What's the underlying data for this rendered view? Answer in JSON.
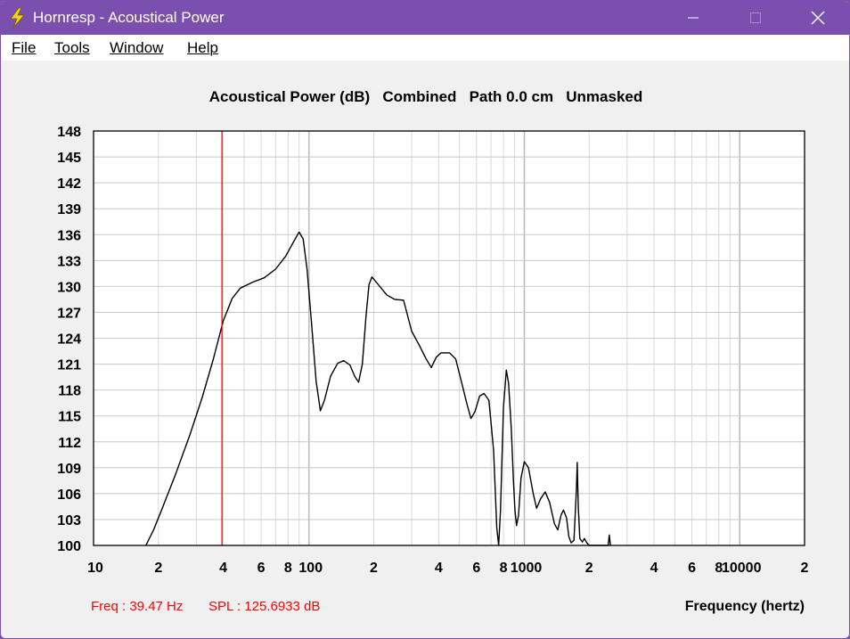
{
  "window": {
    "title": "Hornresp - Acoustical Power",
    "accent_color": "#7b4fae",
    "icons": {
      "app": "lightning-bolt-icon",
      "minimize": "minimize-icon",
      "maximize": "maximize-icon",
      "close": "close-icon"
    }
  },
  "menu": {
    "items": [
      {
        "label": "File"
      },
      {
        "label": "Tools"
      },
      {
        "label": "Window"
      },
      {
        "label": "Help"
      }
    ]
  },
  "readout": {
    "freq": "Freq : 39.47 Hz",
    "spl": "SPL : 125.6933 dB",
    "color": "#ff0000"
  },
  "chart_data": {
    "type": "line",
    "title": "Acoustical Power (dB)   Combined   Path 0.0 cm   Unmasked",
    "xlabel": "Frequency (hertz)",
    "ylabel": "",
    "x_scale": "log",
    "xlim": [
      10,
      20000
    ],
    "ylim": [
      100,
      148
    ],
    "grid": true,
    "x_tick_labels": [
      {
        "value": 10,
        "label": "10"
      },
      {
        "value": 20,
        "label": "2"
      },
      {
        "value": 40,
        "label": "4"
      },
      {
        "value": 60,
        "label": "6"
      },
      {
        "value": 80,
        "label": "8"
      },
      {
        "value": 100,
        "label": "100"
      },
      {
        "value": 200,
        "label": "2"
      },
      {
        "value": 400,
        "label": "4"
      },
      {
        "value": 600,
        "label": "6"
      },
      {
        "value": 800,
        "label": "8"
      },
      {
        "value": 1000,
        "label": "1000"
      },
      {
        "value": 2000,
        "label": "2"
      },
      {
        "value": 4000,
        "label": "4"
      },
      {
        "value": 6000,
        "label": "6"
      },
      {
        "value": 8000,
        "label": "8"
      },
      {
        "value": 10000,
        "label": "10000"
      },
      {
        "value": 20000,
        "label": "2"
      }
    ],
    "y_ticks": [
      148,
      145,
      142,
      139,
      136,
      133,
      130,
      127,
      124,
      121,
      118,
      115,
      112,
      109,
      106,
      103,
      100
    ],
    "marker": {
      "freq": 39.47,
      "spl": 125.6933,
      "color": "#ff0000"
    },
    "series": [
      {
        "color": "#000000",
        "points": [
          [
            17.5,
            100
          ],
          [
            19,
            101.8
          ],
          [
            21,
            104.5
          ],
          [
            24,
            108.2
          ],
          [
            28,
            112.8
          ],
          [
            32,
            117.2
          ],
          [
            36,
            121.6
          ],
          [
            40,
            126.0
          ],
          [
            44,
            128.6
          ],
          [
            48,
            129.8
          ],
          [
            55,
            130.5
          ],
          [
            62,
            131.0
          ],
          [
            70,
            132.0
          ],
          [
            78,
            133.5
          ],
          [
            85,
            135.2
          ],
          [
            90,
            136.3
          ],
          [
            94,
            135.5
          ],
          [
            98,
            132.0
          ],
          [
            103,
            125.5
          ],
          [
            108,
            119.0
          ],
          [
            113,
            115.6
          ],
          [
            118,
            116.8
          ],
          [
            126,
            119.6
          ],
          [
            136,
            121.1
          ],
          [
            145,
            121.4
          ],
          [
            155,
            120.9
          ],
          [
            163,
            119.6
          ],
          [
            170,
            118.9
          ],
          [
            177,
            121.0
          ],
          [
            184,
            126.5
          ],
          [
            190,
            130.2
          ],
          [
            196,
            131.1
          ],
          [
            210,
            130.2
          ],
          [
            230,
            129.0
          ],
          [
            250,
            128.5
          ],
          [
            275,
            128.4
          ],
          [
            300,
            124.8
          ],
          [
            325,
            123.2
          ],
          [
            350,
            121.6
          ],
          [
            370,
            120.6
          ],
          [
            390,
            121.8
          ],
          [
            410,
            122.3
          ],
          [
            450,
            122.3
          ],
          [
            480,
            121.6
          ],
          [
            510,
            119.0
          ],
          [
            540,
            116.5
          ],
          [
            565,
            114.7
          ],
          [
            590,
            115.5
          ],
          [
            620,
            117.3
          ],
          [
            650,
            117.6
          ],
          [
            685,
            116.8
          ],
          [
            720,
            111.0
          ],
          [
            745,
            102.0
          ],
          [
            760,
            100
          ],
          [
            775,
            104.0
          ],
          [
            800,
            116.0
          ],
          [
            825,
            120.3
          ],
          [
            845,
            118.8
          ],
          [
            870,
            113.5
          ],
          [
            890,
            107.5
          ],
          [
            905,
            104.0
          ],
          [
            920,
            102.3
          ],
          [
            940,
            103.5
          ],
          [
            965,
            107.8
          ],
          [
            1000,
            109.7
          ],
          [
            1045,
            109.0
          ],
          [
            1100,
            106.0
          ],
          [
            1140,
            104.3
          ],
          [
            1190,
            105.4
          ],
          [
            1250,
            106.2
          ],
          [
            1310,
            105.0
          ],
          [
            1380,
            102.5
          ],
          [
            1430,
            101.8
          ],
          [
            1480,
            103.5
          ],
          [
            1520,
            104.1
          ],
          [
            1570,
            103.2
          ],
          [
            1610,
            101.0
          ],
          [
            1650,
            100.3
          ],
          [
            1700,
            100.6
          ],
          [
            1745,
            106.5
          ],
          [
            1760,
            109.6
          ],
          [
            1780,
            104.5
          ],
          [
            1810,
            100.8
          ],
          [
            1860,
            100.4
          ],
          [
            1900,
            100.8
          ],
          [
            1950,
            100.3
          ],
          [
            2000,
            100
          ],
          [
            2450,
            100
          ],
          [
            2480,
            101.2
          ],
          [
            2510,
            100
          ]
        ]
      }
    ]
  }
}
